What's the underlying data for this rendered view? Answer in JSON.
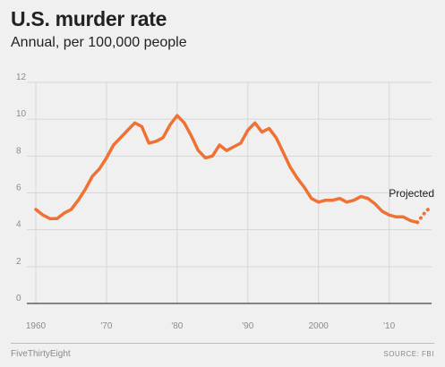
{
  "chart_data": {
    "type": "line",
    "title": "U.S. murder rate",
    "subtitle": "Annual, per 100,000 people",
    "xlabel": "",
    "ylabel": "",
    "xlim": [
      1960,
      2016
    ],
    "ylim": [
      0,
      12
    ],
    "yticks": [
      0,
      2,
      4,
      6,
      8,
      10,
      12
    ],
    "xticks": [
      1960,
      1970,
      1980,
      1990,
      2000,
      2010
    ],
    "xtick_labels": [
      "1960",
      "'70",
      "'80",
      "'90",
      "2000",
      "'10"
    ],
    "grid": true,
    "colors": {
      "line": "#f07233",
      "grid": "#d6d6d6",
      "baseline": "#444444"
    },
    "series": [
      {
        "style": "solid",
        "x": [
          1960,
          1961,
          1962,
          1963,
          1964,
          1965,
          1966,
          1967,
          1968,
          1969,
          1970,
          1971,
          1972,
          1973,
          1974,
          1975,
          1976,
          1977,
          1978,
          1979,
          1980,
          1981,
          1982,
          1983,
          1984,
          1985,
          1986,
          1987,
          1988,
          1989,
          1990,
          1991,
          1992,
          1993,
          1994,
          1995,
          1996,
          1997,
          1998,
          1999,
          2000,
          2001,
          2002,
          2003,
          2004,
          2005,
          2006,
          2007,
          2008,
          2009,
          2010,
          2011,
          2012,
          2013,
          2014
        ],
        "values": [
          5.1,
          4.8,
          4.6,
          4.6,
          4.9,
          5.1,
          5.6,
          6.2,
          6.9,
          7.3,
          7.9,
          8.6,
          9.0,
          9.4,
          9.8,
          9.6,
          8.7,
          8.8,
          9.0,
          9.7,
          10.2,
          9.8,
          9.1,
          8.3,
          7.9,
          8.0,
          8.6,
          8.3,
          8.5,
          8.7,
          9.4,
          9.8,
          9.3,
          9.5,
          9.0,
          8.2,
          7.4,
          6.8,
          6.3,
          5.7,
          5.5,
          5.6,
          5.6,
          5.7,
          5.5,
          5.6,
          5.8,
          5.7,
          5.4,
          5.0,
          4.8,
          4.7,
          4.7,
          4.5,
          4.4
        ]
      },
      {
        "style": "dotted",
        "x": [
          2014,
          2015,
          2016
        ],
        "values": [
          4.4,
          4.9,
          5.3
        ]
      }
    ],
    "annotations": [
      {
        "text": "Projected",
        "x": 2016,
        "y": 5.3
      }
    ]
  },
  "footer": {
    "credit": "FiveThirtyEight",
    "source": "SOURCE: FBI"
  }
}
